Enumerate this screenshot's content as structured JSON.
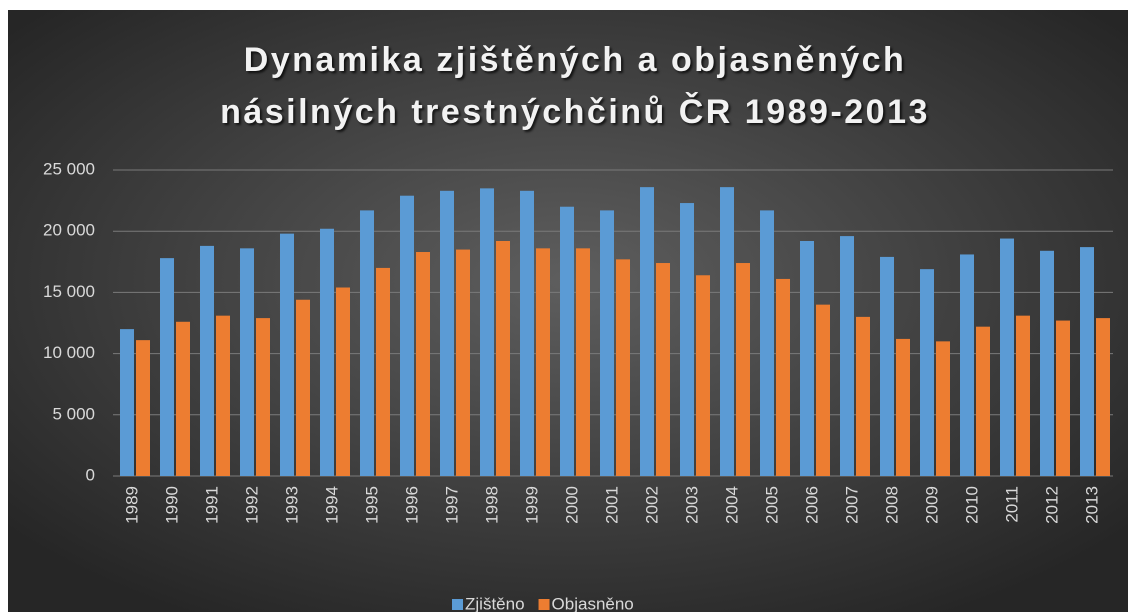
{
  "chart_data": {
    "type": "bar",
    "title": [
      "Dynamika zjištěných a objasněných",
      "násilných trestnýchčinů ČR 1989-2013"
    ],
    "categories": [
      "1989",
      "1990",
      "1991",
      "1992",
      "1993",
      "1994",
      "1995",
      "1996",
      "1997",
      "1998",
      "1999",
      "2000",
      "2001",
      "2002",
      "2003",
      "2004",
      "2005",
      "2006",
      "2007",
      "2008",
      "2009",
      "2010",
      "2011",
      "2012",
      "2013"
    ],
    "series": [
      {
        "name": "Zjištěno",
        "color": "#5b9bd5",
        "values": [
          12000,
          17800,
          18800,
          18600,
          19800,
          20200,
          21700,
          22900,
          23300,
          23500,
          23300,
          22000,
          21700,
          23600,
          22300,
          23600,
          21700,
          19200,
          19600,
          17900,
          16900,
          18100,
          19400,
          18400,
          18700
        ]
      },
      {
        "name": "Objasněno",
        "color": "#ed7d31",
        "values": [
          11100,
          12600,
          13100,
          12900,
          14400,
          15400,
          17000,
          18300,
          18500,
          19200,
          18600,
          18600,
          17700,
          17400,
          16400,
          17400,
          16100,
          14000,
          13000,
          11200,
          11000,
          12200,
          13100,
          12700,
          12900
        ]
      }
    ],
    "ylim": [
      0,
      25000
    ],
    "yticks": [
      0,
      {
        "value": 5000,
        "label": "5 000"
      },
      {
        "value": 10000,
        "label": "10 000"
      },
      {
        "value": 15000,
        "label": "15 000"
      },
      {
        "value": 20000,
        "label": "20 000"
      },
      {
        "value": 25000,
        "label": "25 000"
      }
    ],
    "grid": true,
    "legend": "bottom"
  }
}
